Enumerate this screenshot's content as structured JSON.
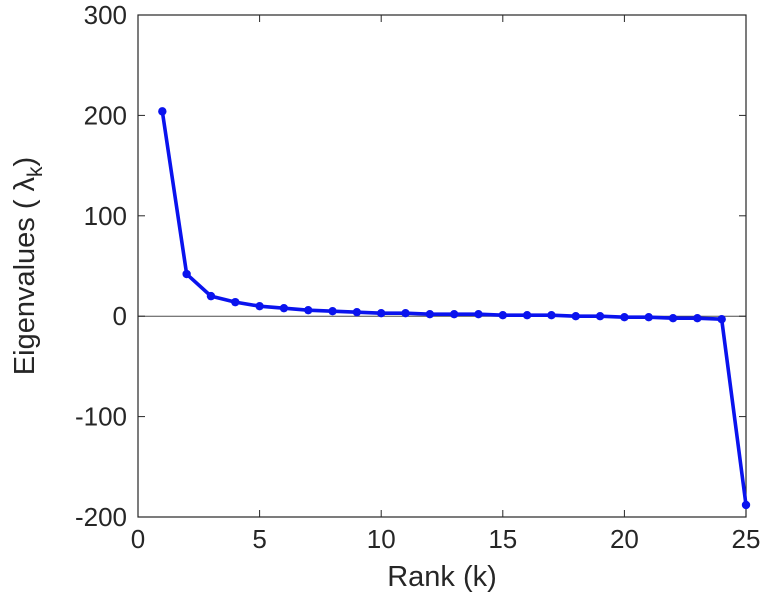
{
  "chart_data": {
    "type": "line",
    "title": "",
    "xlabel": "Rank (k)",
    "ylabel": {
      "prefix": "Eigenvalues ( ",
      "symbol": "λ",
      "subscript": "k",
      "suffix": ")"
    },
    "x": [
      1,
      2,
      3,
      4,
      5,
      6,
      7,
      8,
      9,
      10,
      11,
      12,
      13,
      14,
      15,
      16,
      17,
      18,
      19,
      20,
      21,
      22,
      23,
      24,
      25
    ],
    "y": [
      204,
      42,
      20,
      14,
      10,
      8,
      6,
      5,
      4,
      3,
      3,
      2,
      2,
      2,
      1,
      1,
      1,
      0,
      0,
      -1,
      -1,
      -2,
      -2,
      -3,
      -188
    ],
    "xlim": [
      0,
      25
    ],
    "ylim": [
      -200,
      300
    ],
    "xticks": [
      0,
      5,
      10,
      15,
      20,
      25
    ],
    "yticks": [
      -200,
      -100,
      0,
      100,
      200,
      300
    ],
    "zero_line": true,
    "legend": null,
    "grid": false,
    "line_color": "#0a13ee",
    "axis_color": "#262626",
    "zero_line_color": "#4d4d4d",
    "marker": "circle"
  }
}
